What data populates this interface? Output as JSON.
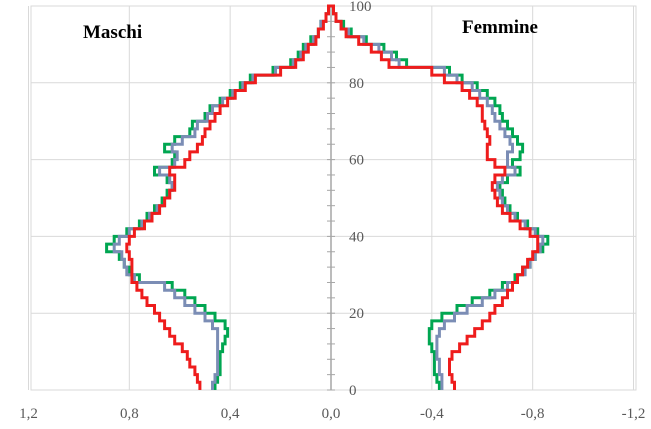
{
  "chart_data": {
    "type": "line",
    "title": "",
    "xlabel": "",
    "ylabel": "",
    "grid": true,
    "x_note": "population pyramid style: positive values to the left (males), negative to the right (females)",
    "xlim": [
      1.2,
      -1.2
    ],
    "ylim": [
      0,
      100
    ],
    "x_ticks": [
      {
        "value": 1.2,
        "label": "1,2"
      },
      {
        "value": 0.8,
        "label": "0,8"
      },
      {
        "value": 0.4,
        "label": "0,4"
      },
      {
        "value": 0.0,
        "label": "0,0"
      },
      {
        "value": -0.4,
        "label": "-0,4"
      },
      {
        "value": -0.8,
        "label": "-0,8"
      },
      {
        "value": -1.2,
        "label": "-1,2"
      }
    ],
    "y_ticks": [
      {
        "value": 0,
        "label": "0"
      },
      {
        "value": 20,
        "label": "20"
      },
      {
        "value": 40,
        "label": "40"
      },
      {
        "value": 60,
        "label": "60"
      },
      {
        "value": 80,
        "label": "80"
      },
      {
        "value": 100,
        "label": "100"
      }
    ],
    "annotations": [
      {
        "text": "Maschi",
        "side": "left"
      },
      {
        "text": "Femmine",
        "side": "right"
      }
    ],
    "series": [
      {
        "color": "#00a651",
        "males": [
          [
            0,
            0.46
          ],
          [
            2,
            0.45
          ],
          [
            4,
            0.44
          ],
          [
            6,
            0.44
          ],
          [
            8,
            0.44
          ],
          [
            10,
            0.43
          ],
          [
            12,
            0.42
          ],
          [
            14,
            0.41
          ],
          [
            16,
            0.42
          ],
          [
            18,
            0.46
          ],
          [
            20,
            0.5
          ],
          [
            22,
            0.54
          ],
          [
            24,
            0.58
          ],
          [
            26,
            0.63
          ],
          [
            28,
            0.76
          ],
          [
            30,
            0.8
          ],
          [
            32,
            0.82
          ],
          [
            34,
            0.84
          ],
          [
            36,
            0.89
          ],
          [
            38,
            0.86
          ],
          [
            40,
            0.81
          ],
          [
            42,
            0.76
          ],
          [
            44,
            0.73
          ],
          [
            46,
            0.7
          ],
          [
            48,
            0.67
          ],
          [
            50,
            0.65
          ],
          [
            52,
            0.63
          ],
          [
            54,
            0.65
          ],
          [
            56,
            0.7
          ],
          [
            58,
            0.63
          ],
          [
            60,
            0.62
          ],
          [
            62,
            0.66
          ],
          [
            64,
            0.62
          ],
          [
            66,
            0.56
          ],
          [
            68,
            0.55
          ],
          [
            70,
            0.5
          ],
          [
            72,
            0.48
          ],
          [
            74,
            0.44
          ],
          [
            76,
            0.4
          ],
          [
            78,
            0.36
          ],
          [
            80,
            0.32
          ],
          [
            82,
            0.23
          ],
          [
            84,
            0.16
          ],
          [
            86,
            0.13
          ],
          [
            88,
            0.11
          ],
          [
            90,
            0.08
          ],
          [
            92,
            0.05
          ],
          [
            94,
            0.04
          ],
          [
            96,
            0.02
          ],
          [
            98,
            0.01
          ],
          [
            100,
            0.0
          ]
        ],
        "females": [
          [
            0,
            -0.43
          ],
          [
            2,
            -0.42
          ],
          [
            4,
            -0.41
          ],
          [
            6,
            -0.41
          ],
          [
            8,
            -0.41
          ],
          [
            10,
            -0.4
          ],
          [
            12,
            -0.39
          ],
          [
            14,
            -0.39
          ],
          [
            16,
            -0.4
          ],
          [
            18,
            -0.44
          ],
          [
            20,
            -0.5
          ],
          [
            22,
            -0.56
          ],
          [
            24,
            -0.63
          ],
          [
            26,
            -0.68
          ],
          [
            28,
            -0.73
          ],
          [
            30,
            -0.76
          ],
          [
            32,
            -0.79
          ],
          [
            34,
            -0.81
          ],
          [
            36,
            -0.84
          ],
          [
            38,
            -0.86
          ],
          [
            40,
            -0.82
          ],
          [
            42,
            -0.78
          ],
          [
            44,
            -0.74
          ],
          [
            46,
            -0.71
          ],
          [
            48,
            -0.69
          ],
          [
            50,
            -0.68
          ],
          [
            52,
            -0.67
          ],
          [
            54,
            -0.7
          ],
          [
            56,
            -0.75
          ],
          [
            58,
            -0.72
          ],
          [
            60,
            -0.75
          ],
          [
            62,
            -0.76
          ],
          [
            64,
            -0.74
          ],
          [
            66,
            -0.72
          ],
          [
            68,
            -0.7
          ],
          [
            70,
            -0.68
          ],
          [
            72,
            -0.67
          ],
          [
            74,
            -0.65
          ],
          [
            76,
            -0.62
          ],
          [
            78,
            -0.58
          ],
          [
            80,
            -0.52
          ],
          [
            82,
            -0.47
          ],
          [
            84,
            -0.3
          ],
          [
            86,
            -0.26
          ],
          [
            88,
            -0.21
          ],
          [
            90,
            -0.14
          ],
          [
            92,
            -0.08
          ],
          [
            94,
            -0.05
          ],
          [
            96,
            -0.02
          ],
          [
            98,
            -0.01
          ],
          [
            100,
            0.0
          ]
        ]
      },
      {
        "color": "#7b8db5",
        "males": [
          [
            0,
            0.47
          ],
          [
            2,
            0.46
          ],
          [
            4,
            0.45
          ],
          [
            6,
            0.45
          ],
          [
            8,
            0.45
          ],
          [
            10,
            0.45
          ],
          [
            12,
            0.45
          ],
          [
            14,
            0.45
          ],
          [
            16,
            0.47
          ],
          [
            18,
            0.5
          ],
          [
            20,
            0.54
          ],
          [
            22,
            0.58
          ],
          [
            24,
            0.62
          ],
          [
            26,
            0.66
          ],
          [
            28,
            0.78
          ],
          [
            30,
            0.81
          ],
          [
            32,
            0.82
          ],
          [
            34,
            0.83
          ],
          [
            36,
            0.86
          ],
          [
            38,
            0.84
          ],
          [
            40,
            0.8
          ],
          [
            42,
            0.75
          ],
          [
            44,
            0.72
          ],
          [
            46,
            0.69
          ],
          [
            48,
            0.66
          ],
          [
            50,
            0.64
          ],
          [
            52,
            0.63
          ],
          [
            54,
            0.64
          ],
          [
            56,
            0.68
          ],
          [
            58,
            0.62
          ],
          [
            60,
            0.61
          ],
          [
            62,
            0.63
          ],
          [
            64,
            0.59
          ],
          [
            66,
            0.54
          ],
          [
            68,
            0.53
          ],
          [
            70,
            0.49
          ],
          [
            72,
            0.47
          ],
          [
            74,
            0.43
          ],
          [
            76,
            0.39
          ],
          [
            78,
            0.35
          ],
          [
            80,
            0.31
          ],
          [
            82,
            0.22
          ],
          [
            84,
            0.15
          ],
          [
            86,
            0.12
          ],
          [
            88,
            0.1
          ],
          [
            90,
            0.07
          ],
          [
            92,
            0.05
          ],
          [
            94,
            0.04
          ],
          [
            96,
            0.02
          ],
          [
            98,
            0.01
          ],
          [
            100,
            0.0
          ]
        ],
        "females": [
          [
            0,
            -0.44
          ],
          [
            2,
            -0.44
          ],
          [
            4,
            -0.43
          ],
          [
            6,
            -0.43
          ],
          [
            8,
            -0.42
          ],
          [
            10,
            -0.42
          ],
          [
            12,
            -0.42
          ],
          [
            14,
            -0.43
          ],
          [
            16,
            -0.45
          ],
          [
            18,
            -0.49
          ],
          [
            20,
            -0.54
          ],
          [
            22,
            -0.6
          ],
          [
            24,
            -0.65
          ],
          [
            26,
            -0.7
          ],
          [
            28,
            -0.74
          ],
          [
            30,
            -0.77
          ],
          [
            32,
            -0.79
          ],
          [
            34,
            -0.81
          ],
          [
            36,
            -0.83
          ],
          [
            38,
            -0.84
          ],
          [
            40,
            -0.81
          ],
          [
            42,
            -0.77
          ],
          [
            44,
            -0.73
          ],
          [
            46,
            -0.7
          ],
          [
            48,
            -0.68
          ],
          [
            50,
            -0.67
          ],
          [
            52,
            -0.66
          ],
          [
            54,
            -0.68
          ],
          [
            56,
            -0.73
          ],
          [
            58,
            -0.7
          ],
          [
            60,
            -0.7
          ],
          [
            62,
            -0.72
          ],
          [
            64,
            -0.71
          ],
          [
            66,
            -0.69
          ],
          [
            68,
            -0.67
          ],
          [
            70,
            -0.65
          ],
          [
            72,
            -0.64
          ],
          [
            74,
            -0.62
          ],
          [
            76,
            -0.59
          ],
          [
            78,
            -0.56
          ],
          [
            80,
            -0.5
          ],
          [
            82,
            -0.45
          ],
          [
            84,
            -0.27
          ],
          [
            86,
            -0.24
          ],
          [
            88,
            -0.19
          ],
          [
            90,
            -0.13
          ],
          [
            92,
            -0.07
          ],
          [
            94,
            -0.04
          ],
          [
            96,
            -0.02
          ],
          [
            98,
            -0.01
          ],
          [
            100,
            0.0
          ]
        ]
      },
      {
        "color": "#ee1c1c",
        "males": [
          [
            0,
            0.52
          ],
          [
            2,
            0.53
          ],
          [
            4,
            0.54
          ],
          [
            6,
            0.56
          ],
          [
            8,
            0.57
          ],
          [
            10,
            0.59
          ],
          [
            12,
            0.62
          ],
          [
            14,
            0.64
          ],
          [
            16,
            0.66
          ],
          [
            18,
            0.68
          ],
          [
            20,
            0.7
          ],
          [
            22,
            0.73
          ],
          [
            24,
            0.75
          ],
          [
            26,
            0.77
          ],
          [
            28,
            0.79
          ],
          [
            30,
            0.79
          ],
          [
            32,
            0.79
          ],
          [
            34,
            0.8
          ],
          [
            36,
            0.81
          ],
          [
            38,
            0.8
          ],
          [
            40,
            0.78
          ],
          [
            42,
            0.74
          ],
          [
            44,
            0.71
          ],
          [
            46,
            0.68
          ],
          [
            48,
            0.66
          ],
          [
            50,
            0.64
          ],
          [
            52,
            0.62
          ],
          [
            54,
            0.62
          ],
          [
            56,
            0.64
          ],
          [
            58,
            0.58
          ],
          [
            60,
            0.56
          ],
          [
            62,
            0.53
          ],
          [
            64,
            0.51
          ],
          [
            66,
            0.5
          ],
          [
            68,
            0.48
          ],
          [
            70,
            0.46
          ],
          [
            72,
            0.44
          ],
          [
            74,
            0.41
          ],
          [
            76,
            0.38
          ],
          [
            78,
            0.34
          ],
          [
            80,
            0.3
          ],
          [
            82,
            0.2
          ],
          [
            84,
            0.14
          ],
          [
            86,
            0.11
          ],
          [
            88,
            0.09
          ],
          [
            90,
            0.06
          ],
          [
            92,
            0.05
          ],
          [
            94,
            0.03
          ],
          [
            96,
            0.02
          ],
          [
            98,
            0.01
          ],
          [
            100,
            0.0
          ]
        ],
        "females": [
          [
            0,
            -0.49
          ],
          [
            2,
            -0.48
          ],
          [
            4,
            -0.47
          ],
          [
            6,
            -0.47
          ],
          [
            8,
            -0.48
          ],
          [
            10,
            -0.51
          ],
          [
            12,
            -0.54
          ],
          [
            14,
            -0.57
          ],
          [
            16,
            -0.6
          ],
          [
            18,
            -0.63
          ],
          [
            20,
            -0.65
          ],
          [
            22,
            -0.68
          ],
          [
            24,
            -0.7
          ],
          [
            26,
            -0.72
          ],
          [
            28,
            -0.74
          ],
          [
            30,
            -0.76
          ],
          [
            32,
            -0.78
          ],
          [
            34,
            -0.8
          ],
          [
            36,
            -0.82
          ],
          [
            38,
            -0.82
          ],
          [
            40,
            -0.79
          ],
          [
            42,
            -0.75
          ],
          [
            44,
            -0.71
          ],
          [
            46,
            -0.68
          ],
          [
            48,
            -0.66
          ],
          [
            50,
            -0.65
          ],
          [
            52,
            -0.64
          ],
          [
            54,
            -0.65
          ],
          [
            56,
            -0.69
          ],
          [
            58,
            -0.65
          ],
          [
            60,
            -0.62
          ],
          [
            62,
            -0.62
          ],
          [
            64,
            -0.63
          ],
          [
            66,
            -0.62
          ],
          [
            68,
            -0.61
          ],
          [
            70,
            -0.6
          ],
          [
            72,
            -0.6
          ],
          [
            74,
            -0.58
          ],
          [
            76,
            -0.55
          ],
          [
            78,
            -0.52
          ],
          [
            80,
            -0.45
          ],
          [
            82,
            -0.4
          ],
          [
            84,
            -0.23
          ],
          [
            86,
            -0.2
          ],
          [
            88,
            -0.16
          ],
          [
            90,
            -0.11
          ],
          [
            92,
            -0.06
          ],
          [
            94,
            -0.04
          ],
          [
            96,
            -0.02
          ],
          [
            98,
            -0.01
          ],
          [
            100,
            0.0
          ]
        ]
      }
    ]
  }
}
